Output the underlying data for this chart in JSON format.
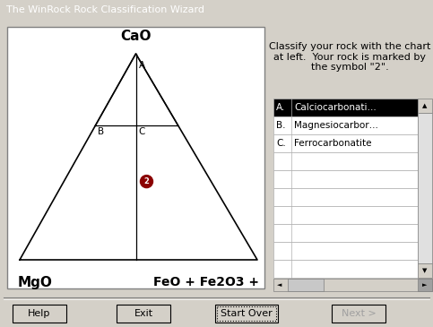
{
  "title_bar": "The WinRock Rock Classification Wizard",
  "bg_color": "#d4d0c8",
  "panel_bg": "#ffffff",
  "label_CaO": "CaO",
  "label_MgO": "MgO",
  "label_FeO": "FeO + Fe2O3 +",
  "label_A": "A",
  "label_B": "B",
  "label_C": "C",
  "marker_color": "#8b0000",
  "classify_text": "Classify your rock with the chart\nat left.  Your rock is marked by\nthe symbol \"2\".",
  "table_rows": [
    [
      "A.",
      "Calciocarbonati…"
    ],
    [
      "B.",
      "Magnesiocarbor…"
    ],
    [
      "C.",
      "Ferrocarbonatite"
    ]
  ],
  "table_selected_row": 0,
  "table_selected_bg": "#000000",
  "table_selected_fg": "#ffffff",
  "buttons": [
    "Help",
    "Exit",
    "Start Over",
    "Next >"
  ],
  "button_active": "Start Over",
  "button_disabled": "Next >"
}
